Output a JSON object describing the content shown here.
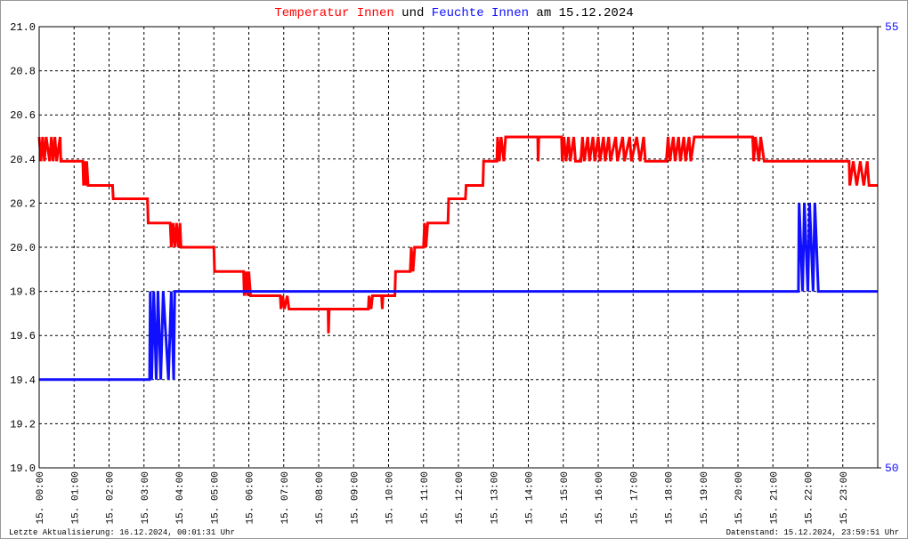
{
  "chart_data": {
    "type": "line",
    "title": {
      "connector": "und",
      "suffix": "am 15.12.2024"
    },
    "footer": {
      "left": "Letzte Aktualisierung: 16.12.2024, 00:01:31 Uhr",
      "right": "Datenstand: 15.12.2024, 23:59:51 Uhr"
    },
    "xlim": [
      0,
      24
    ],
    "xticks": [
      {
        "value": 0,
        "label": "15. 00:00"
      },
      {
        "value": 1,
        "label": "15. 01:00"
      },
      {
        "value": 2,
        "label": "15. 02:00"
      },
      {
        "value": 3,
        "label": "15. 03:00"
      },
      {
        "value": 4,
        "label": "15. 04:00"
      },
      {
        "value": 5,
        "label": "15. 05:00"
      },
      {
        "value": 6,
        "label": "15. 06:00"
      },
      {
        "value": 7,
        "label": "15. 07:00"
      },
      {
        "value": 8,
        "label": "15. 08:00"
      },
      {
        "value": 9,
        "label": "15. 09:00"
      },
      {
        "value": 10,
        "label": "15. 10:00"
      },
      {
        "value": 11,
        "label": "15. 11:00"
      },
      {
        "value": 12,
        "label": "15. 12:00"
      },
      {
        "value": 13,
        "label": "15. 13:00"
      },
      {
        "value": 14,
        "label": "15. 14:00"
      },
      {
        "value": 15,
        "label": "15. 15:00"
      },
      {
        "value": 16,
        "label": "15. 16:00"
      },
      {
        "value": 17,
        "label": "15. 17:00"
      },
      {
        "value": 18,
        "label": "15. 18:00"
      },
      {
        "value": 19,
        "label": "15. 19:00"
      },
      {
        "value": 20,
        "label": "15. 20:00"
      },
      {
        "value": 21,
        "label": "15. 21:00"
      },
      {
        "value": 22,
        "label": "15. 22:00"
      },
      {
        "value": 23,
        "label": "15. 23:00"
      }
    ],
    "ylim": [
      19,
      21
    ],
    "yticks": [
      {
        "value": 19,
        "label": "19.0"
      },
      19.2,
      19.4,
      19.6,
      19.8,
      {
        "value": 20,
        "label": "20.0"
      },
      20.2,
      20.4,
      20.6,
      20.8,
      {
        "value": 21,
        "label": "21.0"
      }
    ],
    "y2lim": [
      50,
      55
    ],
    "y2ticks": [
      50,
      55
    ],
    "grid": true,
    "series": [
      {
        "name": "Temperatur Innen",
        "color": "#ff0000",
        "x": [
          0,
          0.05,
          0.1,
          0.15,
          0.2,
          0.3,
          0.35,
          0.4,
          0.45,
          0.5,
          0.6,
          0.62,
          1.25,
          1.27,
          1.3,
          1.33,
          1.36,
          1.4,
          2.1,
          2.12,
          3.1,
          3.12,
          3.75,
          3.78,
          3.83,
          3.88,
          3.93,
          3.98,
          4.03,
          4.06,
          5.0,
          5.02,
          5.85,
          5.87,
          5.92,
          5.96,
          6.0,
          6.05,
          6.9,
          6.92,
          6.97,
          7.02,
          7.1,
          7.15,
          8.27,
          8.28,
          8.3,
          9.42,
          9.44,
          9.5,
          9.54,
          9.8,
          9.82,
          9.84,
          10.18,
          10.2,
          10.62,
          10.65,
          10.7,
          10.75,
          11.0,
          11.03,
          11.07,
          11.12,
          11.7,
          11.72,
          12.2,
          12.22,
          12.7,
          12.72,
          13.1,
          13.12,
          13.17,
          13.22,
          13.3,
          13.35,
          14.27,
          14.28,
          14.3,
          14.95,
          14.97,
          15.02,
          15.08,
          15.15,
          15.2,
          15.3,
          15.35,
          15.5,
          15.55,
          15.6,
          15.7,
          15.75,
          15.85,
          15.9,
          16.0,
          16.05,
          16.15,
          16.2,
          16.3,
          16.35,
          16.5,
          16.55,
          16.7,
          16.75,
          16.9,
          16.95,
          17.1,
          17.2,
          17.3,
          17.35,
          17.95,
          18.0,
          18.05,
          18.15,
          18.2,
          18.3,
          18.35,
          18.45,
          18.5,
          18.6,
          18.65,
          18.75,
          20.42,
          20.45,
          20.5,
          20.6,
          20.65,
          20.75,
          23.18,
          23.2,
          23.3,
          23.4,
          23.5,
          23.6,
          23.7,
          23.75,
          24
        ],
        "values": [
          20.5,
          20.39,
          20.5,
          20.39,
          20.5,
          20.39,
          20.5,
          20.39,
          20.5,
          20.39,
          20.5,
          20.39,
          20.39,
          20.28,
          20.39,
          20.28,
          20.39,
          20.28,
          20.28,
          20.22,
          20.22,
          20.11,
          20.11,
          20.0,
          20.11,
          20.0,
          20.11,
          20.0,
          20.11,
          20.0,
          20.0,
          19.89,
          19.89,
          19.78,
          19.89,
          19.78,
          19.89,
          19.78,
          19.78,
          19.72,
          19.78,
          19.72,
          19.78,
          19.72,
          19.72,
          19.61,
          19.72,
          19.72,
          19.78,
          19.72,
          19.78,
          19.78,
          19.72,
          19.78,
          19.78,
          19.89,
          19.89,
          20.0,
          19.89,
          20.0,
          20.0,
          20.11,
          20.0,
          20.11,
          20.11,
          20.22,
          20.22,
          20.28,
          20.28,
          20.39,
          20.39,
          20.5,
          20.39,
          20.5,
          20.39,
          20.5,
          20.5,
          20.39,
          20.5,
          20.5,
          20.39,
          20.5,
          20.39,
          20.5,
          20.39,
          20.5,
          20.39,
          20.39,
          20.5,
          20.39,
          20.5,
          20.39,
          20.5,
          20.39,
          20.5,
          20.39,
          20.5,
          20.39,
          20.5,
          20.39,
          20.5,
          20.39,
          20.5,
          20.39,
          20.5,
          20.39,
          20.5,
          20.39,
          20.5,
          20.39,
          20.39,
          20.5,
          20.39,
          20.5,
          20.39,
          20.5,
          20.39,
          20.5,
          20.39,
          20.5,
          20.39,
          20.5,
          20.5,
          20.39,
          20.5,
          20.39,
          20.5,
          20.39,
          20.39,
          20.28,
          20.39,
          20.28,
          20.39,
          20.28,
          20.39,
          20.28,
          20.28
        ]
      },
      {
        "name": "Feuchte Innen",
        "color": "#1010ff",
        "axis": "y2",
        "x": [
          0,
          3.16,
          3.18,
          3.22,
          3.28,
          3.35,
          3.4,
          3.48,
          3.55,
          3.7,
          3.78,
          3.85,
          3.88,
          21.73,
          21.75,
          21.85,
          21.9,
          22.0,
          22.05,
          22.15,
          22.2,
          22.3,
          22.33,
          24
        ],
        "values": [
          51,
          51,
          52,
          51,
          52,
          51,
          52,
          51,
          52,
          51,
          52,
          51,
          52,
          52,
          53,
          52,
          53,
          52,
          53,
          52,
          53,
          52,
          52,
          52
        ]
      }
    ]
  }
}
